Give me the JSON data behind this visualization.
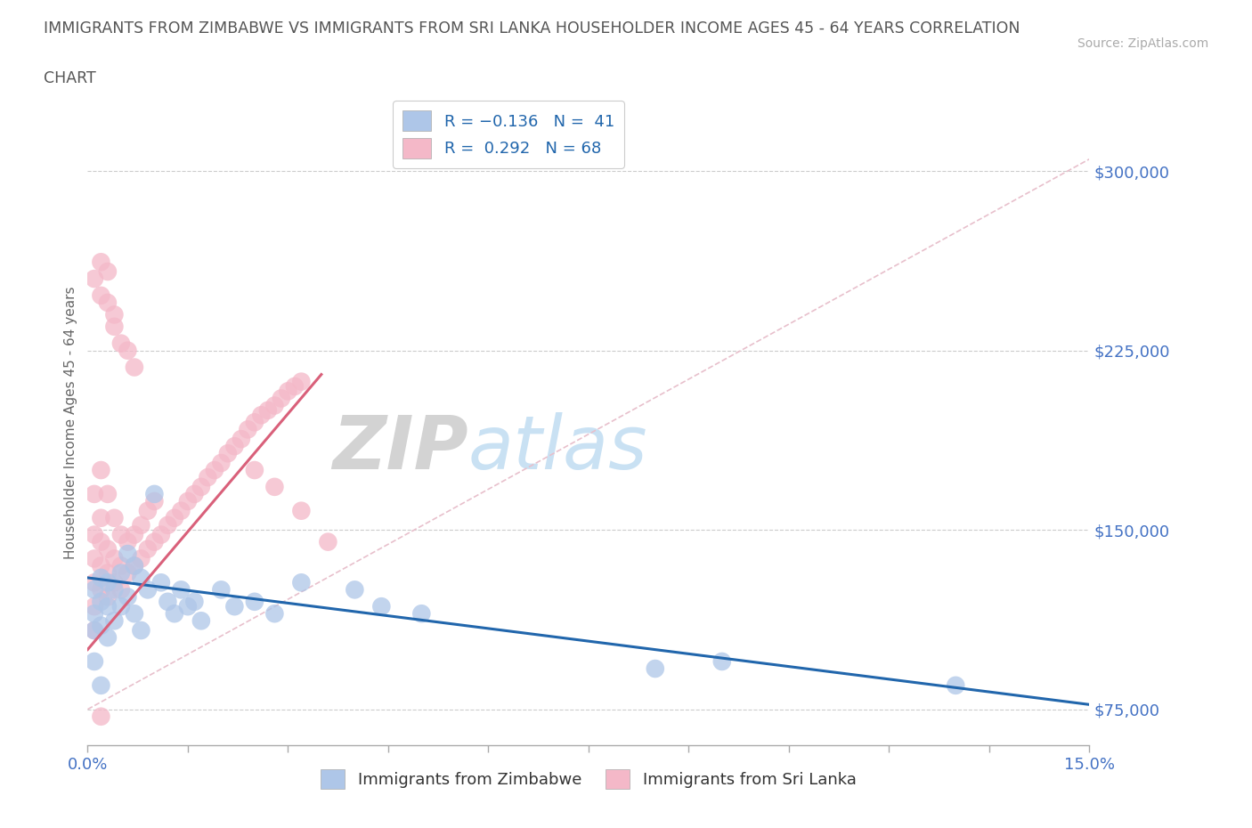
{
  "title_line1": "IMMIGRANTS FROM ZIMBABWE VS IMMIGRANTS FROM SRI LANKA HOUSEHOLDER INCOME AGES 45 - 64 YEARS CORRELATION",
  "title_line2": "CHART",
  "source": "Source: ZipAtlas.com",
  "ylabel": "Householder Income Ages 45 - 64 years",
  "xlim": [
    0.0,
    0.15
  ],
  "ylim": [
    60000,
    330000
  ],
  "yticks": [
    75000,
    150000,
    225000,
    300000
  ],
  "xticks": [
    0.0,
    0.015,
    0.03,
    0.045,
    0.06,
    0.075,
    0.09,
    0.105,
    0.12,
    0.135,
    0.15
  ],
  "watermark_zip": "ZIP",
  "watermark_atlas": "atlas",
  "color_zimbabwe": "#aec6e8",
  "color_sri_lanka": "#f4b8c8",
  "color_trendline_zimbabwe": "#2166ac",
  "color_trendline_sri_lanka": "#d9607a",
  "color_refline": "#e8c0cc",
  "color_axis_labels": "#4472c4",
  "color_title": "#555555",
  "background_color": "#ffffff",
  "grid_color": "#cccccc",
  "trendline_zim_x0": 0.0,
  "trendline_zim_y0": 130000,
  "trendline_zim_x1": 0.15,
  "trendline_zim_y1": 77000,
  "trendline_sri_x0": 0.0,
  "trendline_sri_y0": 100000,
  "trendline_sri_x1": 0.035,
  "trendline_sri_y1": 215000,
  "refline_x0": 0.0,
  "refline_y0": 75000,
  "refline_x1": 0.15,
  "refline_y1": 305000,
  "zim_x": [
    0.001,
    0.001,
    0.001,
    0.001,
    0.002,
    0.002,
    0.002,
    0.002,
    0.003,
    0.003,
    0.003,
    0.004,
    0.004,
    0.005,
    0.005,
    0.006,
    0.006,
    0.007,
    0.007,
    0.008,
    0.008,
    0.009,
    0.01,
    0.011,
    0.012,
    0.013,
    0.014,
    0.015,
    0.016,
    0.017,
    0.02,
    0.022,
    0.025,
    0.028,
    0.032,
    0.04,
    0.044,
    0.05,
    0.085,
    0.095,
    0.13
  ],
  "zim_y": [
    125000,
    115000,
    108000,
    95000,
    130000,
    120000,
    110000,
    85000,
    128000,
    118000,
    105000,
    125000,
    112000,
    132000,
    118000,
    140000,
    122000,
    135000,
    115000,
    130000,
    108000,
    125000,
    165000,
    128000,
    120000,
    115000,
    125000,
    118000,
    120000,
    112000,
    125000,
    118000,
    120000,
    115000,
    128000,
    125000,
    118000,
    115000,
    92000,
    95000,
    85000
  ],
  "sri_x": [
    0.001,
    0.001,
    0.001,
    0.001,
    0.001,
    0.001,
    0.002,
    0.002,
    0.002,
    0.002,
    0.002,
    0.003,
    0.003,
    0.003,
    0.003,
    0.004,
    0.004,
    0.004,
    0.005,
    0.005,
    0.005,
    0.006,
    0.006,
    0.007,
    0.007,
    0.008,
    0.008,
    0.009,
    0.009,
    0.01,
    0.01,
    0.011,
    0.012,
    0.013,
    0.014,
    0.015,
    0.016,
    0.017,
    0.018,
    0.019,
    0.02,
    0.021,
    0.022,
    0.023,
    0.024,
    0.025,
    0.026,
    0.027,
    0.028,
    0.029,
    0.03,
    0.031,
    0.032,
    0.001,
    0.002,
    0.002,
    0.003,
    0.003,
    0.004,
    0.004,
    0.005,
    0.006,
    0.007,
    0.002,
    0.025,
    0.028,
    0.032,
    0.036
  ],
  "sri_y": [
    128000,
    118000,
    108000,
    138000,
    148000,
    165000,
    125000,
    135000,
    145000,
    155000,
    175000,
    122000,
    132000,
    142000,
    165000,
    128000,
    138000,
    155000,
    125000,
    135000,
    148000,
    132000,
    145000,
    135000,
    148000,
    138000,
    152000,
    142000,
    158000,
    145000,
    162000,
    148000,
    152000,
    155000,
    158000,
    162000,
    165000,
    168000,
    172000,
    175000,
    178000,
    182000,
    185000,
    188000,
    192000,
    195000,
    198000,
    200000,
    202000,
    205000,
    208000,
    210000,
    212000,
    255000,
    248000,
    262000,
    245000,
    258000,
    235000,
    240000,
    228000,
    225000,
    218000,
    72000,
    175000,
    168000,
    158000,
    145000
  ]
}
